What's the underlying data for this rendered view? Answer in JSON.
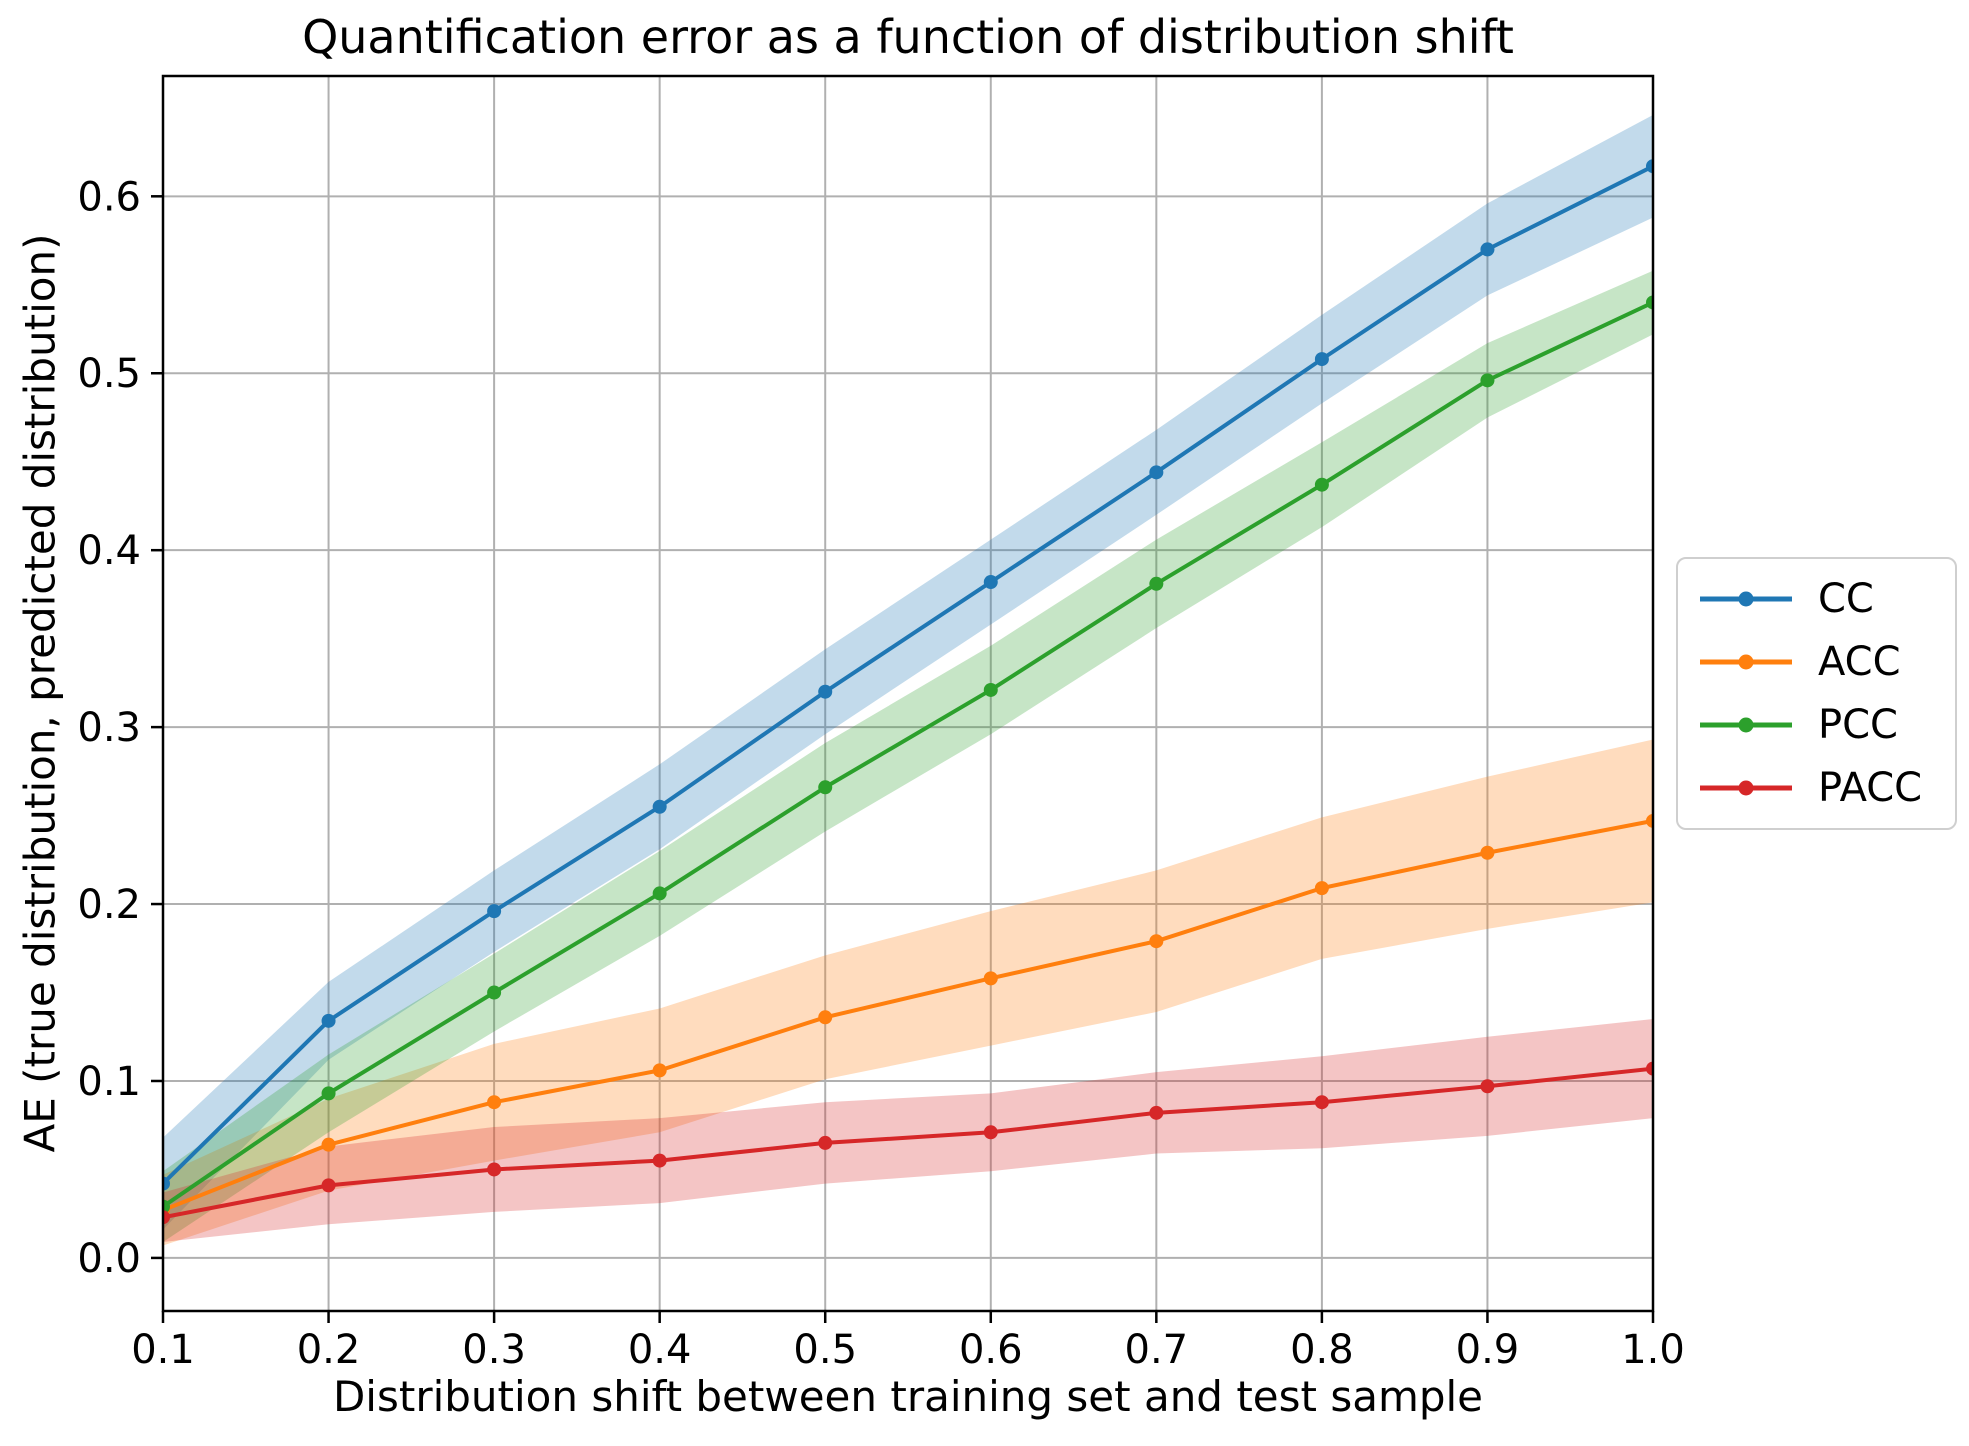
{
  "title": "Quantification error as a function of distribution shift",
  "x_axis": {
    "label": "Distribution shift between training set and test sample",
    "ticks": [
      "0.1",
      "0.2",
      "0.3",
      "0.4",
      "0.5",
      "0.6",
      "0.7",
      "0.8",
      "0.9",
      "1.0"
    ]
  },
  "y_axis": {
    "label": "AE (true distribution, predicted distribution)",
    "ticks": [
      "0.0",
      "0.1",
      "0.2",
      "0.3",
      "0.4",
      "0.5",
      "0.6"
    ]
  },
  "legend": {
    "items": [
      {
        "label": "CC",
        "color": "#1f77b4"
      },
      {
        "label": "ACC",
        "color": "#ff7f0e"
      },
      {
        "label": "PCC",
        "color": "#2ca02c"
      },
      {
        "label": "PACC",
        "color": "#d62728"
      }
    ]
  },
  "colors": {
    "grid": "#b0b0b0",
    "spine": "#000000",
    "text": "#000000",
    "band_opacity": 0.27
  },
  "chart_data": {
    "type": "line",
    "title": "Quantification error as a function of distribution shift",
    "xlabel": "Distribution shift between training set and test sample",
    "ylabel": "AE (true distribution, predicted distribution)",
    "x": [
      0.1,
      0.2,
      0.3,
      0.4,
      0.5,
      0.6,
      0.7,
      0.8,
      0.9,
      1.0
    ],
    "xlim": [
      0.1,
      1.0
    ],
    "ylim": [
      -0.03,
      0.668
    ],
    "grid": true,
    "legend_position": "right-outside",
    "series": [
      {
        "name": "CC",
        "color": "#1f77b4",
        "values": [
          0.042,
          0.134,
          0.196,
          0.255,
          0.32,
          0.382,
          0.444,
          0.508,
          0.57,
          0.617
        ],
        "band_halfwidth": [
          0.026,
          0.022,
          0.023,
          0.024,
          0.024,
          0.024,
          0.024,
          0.025,
          0.026,
          0.029
        ]
      },
      {
        "name": "ACC",
        "color": "#ff7f0e",
        "values": [
          0.027,
          0.064,
          0.088,
          0.106,
          0.136,
          0.158,
          0.179,
          0.209,
          0.229,
          0.247
        ],
        "band_halfwidth": [
          0.02,
          0.026,
          0.033,
          0.035,
          0.035,
          0.038,
          0.04,
          0.04,
          0.043,
          0.046
        ]
      },
      {
        "name": "PCC",
        "color": "#2ca02c",
        "values": [
          0.029,
          0.093,
          0.15,
          0.206,
          0.266,
          0.321,
          0.381,
          0.437,
          0.496,
          0.54
        ],
        "band_halfwidth": [
          0.02,
          0.022,
          0.022,
          0.024,
          0.025,
          0.025,
          0.025,
          0.024,
          0.021,
          0.018
        ]
      },
      {
        "name": "PACC",
        "color": "#d62728",
        "values": [
          0.023,
          0.041,
          0.05,
          0.055,
          0.065,
          0.071,
          0.082,
          0.088,
          0.097,
          0.107
        ],
        "band_halfwidth": [
          0.014,
          0.022,
          0.024,
          0.024,
          0.023,
          0.022,
          0.023,
          0.026,
          0.028,
          0.028
        ]
      }
    ]
  }
}
